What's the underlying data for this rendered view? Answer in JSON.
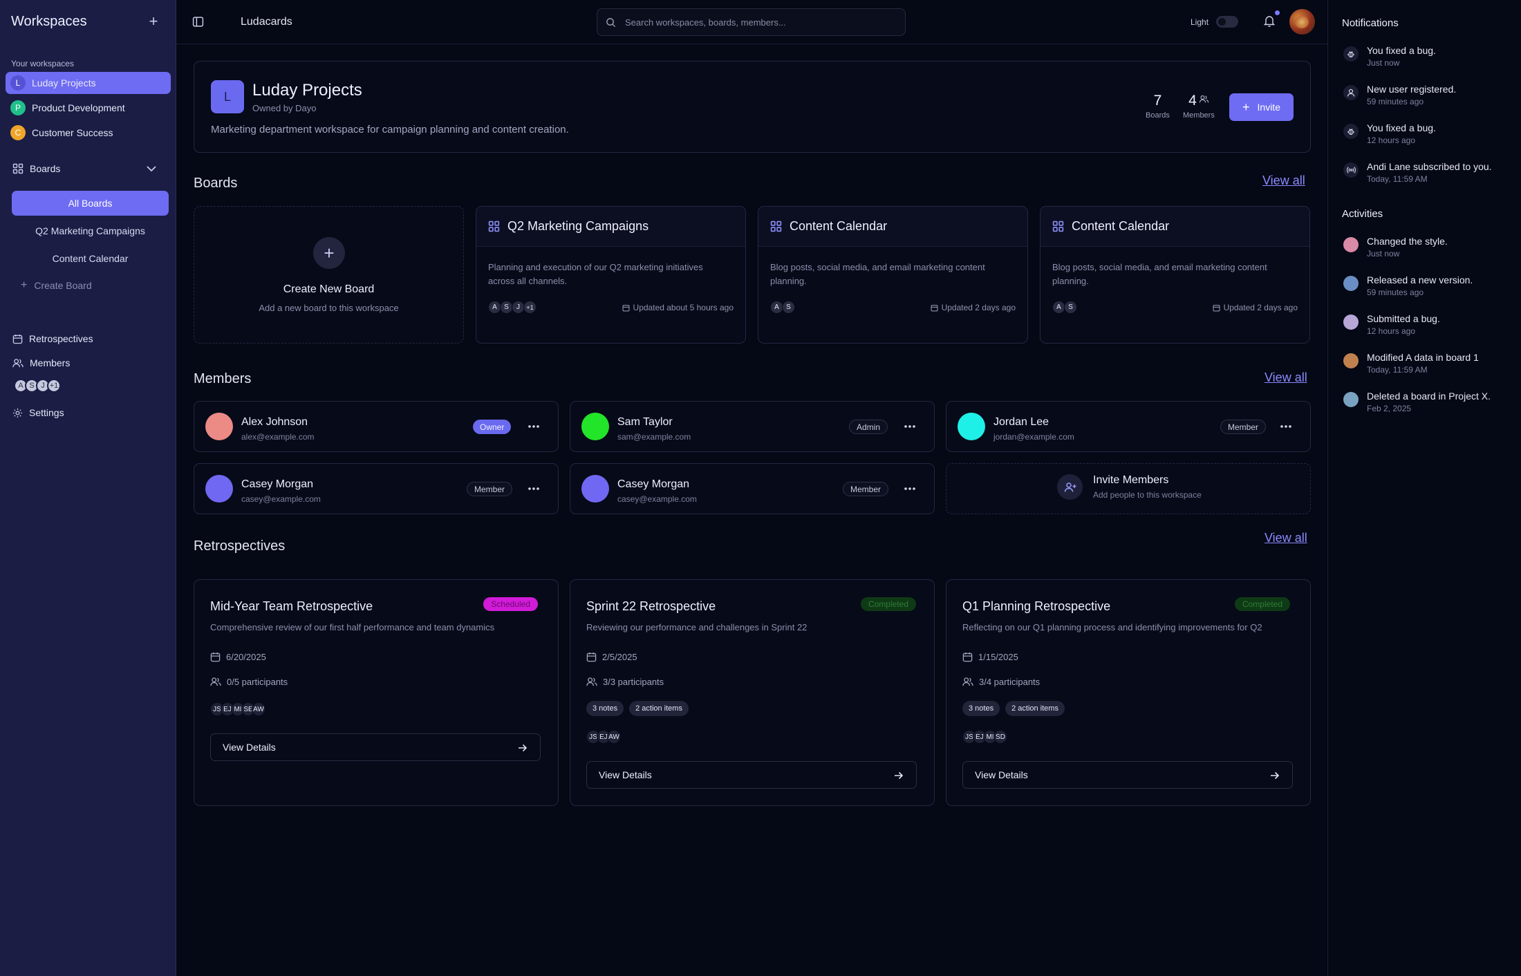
{
  "sidebar": {
    "title": "Workspaces",
    "section_label": "Your workspaces",
    "workspaces": [
      {
        "initial": "L",
        "name": "Luday Projects",
        "color": "#6e6cf2"
      },
      {
        "initial": "P",
        "name": "Product Development",
        "color": "#20c08a"
      },
      {
        "initial": "C",
        "name": "Customer Success",
        "color": "#f0a52a"
      }
    ],
    "boards_label": "Boards",
    "board_links": [
      "All Boards",
      "Q2 Marketing Campaigns",
      "Content Calendar"
    ],
    "create_board": "Create Board",
    "nav": {
      "retrospectives": "Retrospectives",
      "members": "Members",
      "settings": "Settings"
    },
    "member_initials": [
      "A",
      "S",
      "J",
      "+1"
    ]
  },
  "topbar": {
    "breadcrumb": "Ludacards",
    "search_placeholder": "Search workspaces, boards, members...",
    "theme_label": "Light"
  },
  "project": {
    "initial": "L",
    "title": "Luday Projects",
    "owner": "Owned by Dayo",
    "description": "Marketing department workspace for campaign planning and content creation.",
    "boards_count": "7",
    "boards_label": "Boards",
    "members_count": "4",
    "members_label": "Members",
    "invite_label": "Invite"
  },
  "boards_section": {
    "title": "Boards",
    "view_all": "View all",
    "create": {
      "title": "Create New Board",
      "subtitle": "Add a new board to this workspace"
    },
    "cards": [
      {
        "title": "Q2 Marketing Campaigns",
        "description": "Planning and execution of our Q2 marketing initiatives across all channels.",
        "avatars": [
          "A",
          "S",
          "J",
          "+1"
        ],
        "updated": "Updated about 5 hours ago"
      },
      {
        "title": "Content Calendar",
        "description": "Blog posts, social media, and email marketing content planning.",
        "avatars": [
          "A",
          "S"
        ],
        "updated": "Updated 2 days ago"
      },
      {
        "title": "Content Calendar",
        "description": "Blog posts, social media, and email marketing content planning.",
        "avatars": [
          "A",
          "S"
        ],
        "updated": "Updated 2 days ago"
      }
    ]
  },
  "members_section": {
    "title": "Members",
    "view_all": "View all",
    "members": [
      {
        "name": "Alex Johnson",
        "email": "alex@example.com",
        "role": "Owner",
        "color": "#ec8a86"
      },
      {
        "name": "Sam Taylor",
        "email": "sam@example.com",
        "role": "Admin",
        "color": "#22e52a"
      },
      {
        "name": "Jordan Lee",
        "email": "jordan@example.com",
        "role": "Member",
        "color": "#1ef0e8"
      },
      {
        "name": "Casey Morgan",
        "email": "casey@example.com",
        "role": "Member",
        "color": "#7068f2"
      },
      {
        "name": "Casey Morgan",
        "email": "casey@example.com",
        "role": "Member",
        "color": "#7068f2"
      }
    ],
    "invite": {
      "title": "Invite Members",
      "subtitle": "Add people to this workspace"
    }
  },
  "retro_section": {
    "title": "Retrospectives",
    "view_all": "View all",
    "cards": [
      {
        "title": "Mid-Year Team Retrospective",
        "status": "Scheduled",
        "description": "Comprehensive review of our first half performance and team dynamics",
        "date": "6/20/2025",
        "participants": "0/5 participants",
        "chips": [],
        "initials": [
          "JS",
          "EJ",
          "MI",
          "SE",
          "AW"
        ],
        "button": "View Details"
      },
      {
        "title": "Sprint 22 Retrospective",
        "status": "Completed",
        "description": "Reviewing our performance and challenges in Sprint 22",
        "date": "2/5/2025",
        "participants": "3/3 participants",
        "chips": [
          "3 notes",
          "2 action items"
        ],
        "initials": [
          "JS",
          "EJ",
          "AW"
        ],
        "button": "View Details"
      },
      {
        "title": "Q1 Planning Retrospective",
        "status": "Completed",
        "description": "Reflecting on our Q1 planning process and identifying improvements for Q2",
        "date": "1/15/2025",
        "participants": "3/4 participants",
        "chips": [
          "3 notes",
          "2 action items"
        ],
        "initials": [
          "JS",
          "EJ",
          "MI",
          "SD"
        ],
        "button": "View Details"
      }
    ]
  },
  "notifications": {
    "title": "Notifications",
    "items": [
      {
        "text": "You fixed a bug.",
        "time": "Just now",
        "icon": "bug-icon"
      },
      {
        "text": "New user registered.",
        "time": "59 minutes ago",
        "icon": "user-icon"
      },
      {
        "text": "You fixed a bug.",
        "time": "12 hours ago",
        "icon": "bug-icon"
      },
      {
        "text": "Andi Lane subscribed to you.",
        "time": "Today, 11:59 AM",
        "icon": "broadcast-icon"
      }
    ]
  },
  "activities": {
    "title": "Activities",
    "items": [
      {
        "text": "Changed the style.",
        "time": "Just now",
        "color": "#d98aa6"
      },
      {
        "text": "Released a new version.",
        "time": "59 minutes ago",
        "color": "#6a8fc4"
      },
      {
        "text": "Submitted a bug.",
        "time": "12 hours ago",
        "color": "#b7a6d6"
      },
      {
        "text": "Modified A data in board 1",
        "time": "Today, 11:59 AM",
        "color": "#c0814f"
      },
      {
        "text": "Deleted a board in Project X.",
        "time": "Feb 2, 2025",
        "color": "#7aa3c2"
      }
    ]
  },
  "colors": {
    "accent": "#6e6cf2",
    "scheduled": "#d21bd8",
    "completed_bg": "#0f3a16",
    "completed_text": "#2f7d35"
  }
}
